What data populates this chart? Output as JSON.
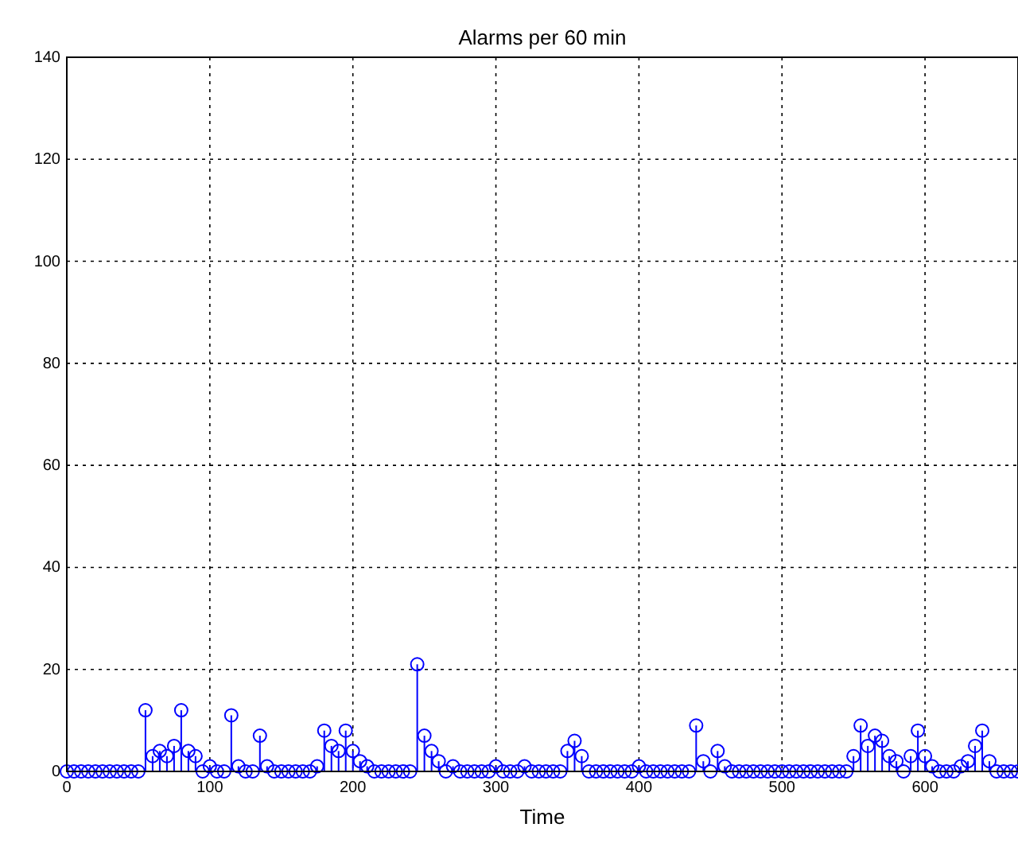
{
  "chart_data": {
    "type": "lollipop",
    "title": "Alarms per 60 min",
    "xlabel": "Time",
    "x": [
      0,
      5,
      10,
      15,
      20,
      25,
      30,
      35,
      40,
      45,
      50,
      55,
      60,
      65,
      70,
      75,
      80,
      85,
      90,
      95,
      100,
      105,
      110,
      115,
      120,
      125,
      130,
      135,
      140,
      145,
      150,
      155,
      160,
      165,
      170,
      175,
      180,
      185,
      190,
      195,
      200,
      205,
      210,
      215,
      220,
      225,
      230,
      235,
      240,
      245,
      250,
      255,
      260,
      265,
      270,
      275,
      280,
      285,
      290,
      295,
      300,
      305,
      310,
      315,
      320,
      325,
      330,
      335,
      340,
      345,
      350,
      355,
      360,
      365,
      370,
      375,
      380,
      385,
      390,
      395,
      400,
      405,
      410,
      415,
      420,
      425,
      430,
      435,
      440,
      445,
      450,
      455,
      460,
      465,
      470,
      475,
      480,
      485,
      490,
      495,
      500,
      505,
      510,
      515,
      520,
      525,
      530,
      535,
      540,
      545,
      550,
      555,
      560,
      565,
      570,
      575,
      580,
      585,
      590,
      595,
      600,
      605,
      610,
      615,
      620,
      625,
      630,
      635,
      640,
      645,
      650,
      655,
      660,
      665
    ],
    "series": [
      {
        "color": "#0000ff",
        "values": [
          0,
          0,
          0,
          0,
          0,
          0,
          0,
          0,
          0,
          0,
          0,
          12,
          3,
          4,
          3,
          5,
          12,
          4,
          3,
          0,
          1,
          0,
          0,
          11,
          1,
          0,
          0,
          7,
          1,
          0,
          0,
          0,
          0,
          0,
          0,
          1,
          8,
          5,
          4,
          8,
          4,
          2,
          1,
          0,
          0,
          0,
          0,
          0,
          0,
          21,
          7,
          4,
          2,
          0,
          1,
          0,
          0,
          0,
          0,
          0,
          1,
          0,
          0,
          0,
          1,
          0,
          0,
          0,
          0,
          0,
          4,
          6,
          3,
          0,
          0,
          0,
          0,
          0,
          0,
          0,
          1,
          0,
          0,
          0,
          0,
          0,
          0,
          0,
          9,
          2,
          0,
          4,
          1,
          0,
          0,
          0,
          0,
          0,
          0,
          0,
          0,
          0,
          0,
          0,
          0,
          0,
          0,
          0,
          0,
          0,
          3,
          9,
          5,
          7,
          6,
          3,
          2,
          0,
          3,
          8,
          3,
          1,
          0,
          0,
          0,
          1,
          2,
          5,
          8,
          2,
          0,
          0,
          0,
          0
        ]
      }
    ],
    "xlim": [
      0,
      665
    ],
    "xticks": [
      0,
      100,
      200,
      300,
      400,
      500,
      600
    ],
    "ylim": [
      0,
      140
    ],
    "yticks": [
      0,
      20,
      40,
      60,
      80,
      100,
      120,
      140
    ],
    "grid": true,
    "marker": "circle",
    "line_style": "solid"
  }
}
